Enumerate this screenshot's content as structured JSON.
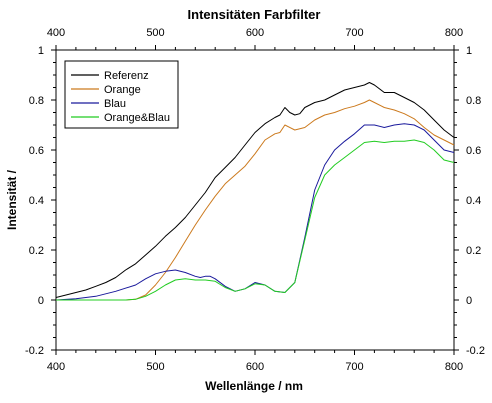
{
  "chart_data": {
    "type": "line",
    "title": "Intensitäten Farbfilter",
    "xlabel": "Wellenlänge / nm",
    "ylabel": "Intensität /",
    "xlim": [
      400,
      800
    ],
    "ylim": [
      -0.2,
      1
    ],
    "x_ticks": [
      "400",
      "500",
      "600",
      "700",
      "800"
    ],
    "y_ticks": [
      "-0.2",
      "0",
      "0.2",
      "0.4",
      "0.6",
      "0.8",
      "1"
    ],
    "mirror_axes": true,
    "grid": false,
    "legend_position": "top-left",
    "series": [
      {
        "name": "Referenz",
        "color": "#000000",
        "x": [
          400,
          410,
          420,
          430,
          440,
          450,
          460,
          470,
          480,
          490,
          500,
          510,
          520,
          530,
          540,
          550,
          560,
          570,
          580,
          590,
          600,
          610,
          620,
          625,
          630,
          635,
          640,
          645,
          650,
          660,
          670,
          680,
          690,
          700,
          710,
          715,
          720,
          730,
          740,
          750,
          760,
          770,
          780,
          790,
          800
        ],
        "y": [
          0.01,
          0.02,
          0.03,
          0.04,
          0.055,
          0.07,
          0.09,
          0.12,
          0.145,
          0.18,
          0.215,
          0.255,
          0.29,
          0.33,
          0.38,
          0.43,
          0.49,
          0.53,
          0.57,
          0.62,
          0.67,
          0.705,
          0.73,
          0.74,
          0.77,
          0.75,
          0.74,
          0.745,
          0.77,
          0.79,
          0.8,
          0.82,
          0.84,
          0.85,
          0.86,
          0.87,
          0.86,
          0.83,
          0.83,
          0.81,
          0.79,
          0.76,
          0.72,
          0.68,
          0.65
        ]
      },
      {
        "name": "Orange",
        "color": "#cc7a1e",
        "x": [
          400,
          470,
          480,
          490,
          500,
          510,
          520,
          530,
          540,
          550,
          560,
          570,
          580,
          590,
          600,
          610,
          620,
          625,
          630,
          640,
          650,
          660,
          670,
          680,
          690,
          700,
          710,
          715,
          720,
          730,
          740,
          750,
          760,
          770,
          780,
          790,
          800
        ],
        "y": [
          0,
          0,
          0.003,
          0.02,
          0.06,
          0.11,
          0.17,
          0.235,
          0.3,
          0.36,
          0.415,
          0.465,
          0.5,
          0.535,
          0.585,
          0.64,
          0.665,
          0.67,
          0.7,
          0.68,
          0.69,
          0.72,
          0.74,
          0.75,
          0.765,
          0.775,
          0.79,
          0.8,
          0.79,
          0.77,
          0.76,
          0.745,
          0.725,
          0.69,
          0.66,
          0.64,
          0.62
        ]
      },
      {
        "name": "Blau",
        "color": "#1a1a9c",
        "x": [
          400,
          420,
          440,
          460,
          480,
          490,
          500,
          510,
          520,
          530,
          540,
          545,
          550,
          555,
          560,
          570,
          580,
          590,
          600,
          610,
          620,
          630,
          640,
          650,
          660,
          670,
          680,
          690,
          700,
          710,
          720,
          730,
          740,
          750,
          760,
          770,
          780,
          790,
          800
        ],
        "y": [
          0,
          0.005,
          0.015,
          0.035,
          0.06,
          0.085,
          0.105,
          0.115,
          0.12,
          0.11,
          0.095,
          0.09,
          0.095,
          0.095,
          0.085,
          0.055,
          0.035,
          0.045,
          0.07,
          0.06,
          0.035,
          0.03,
          0.07,
          0.25,
          0.44,
          0.54,
          0.6,
          0.635,
          0.665,
          0.7,
          0.7,
          0.69,
          0.7,
          0.705,
          0.7,
          0.68,
          0.64,
          0.6,
          0.59
        ]
      },
      {
        "name": "Orange&Blau",
        "color": "#22cc22",
        "x": [
          400,
          470,
          480,
          490,
          500,
          510,
          520,
          530,
          540,
          550,
          560,
          570,
          580,
          590,
          600,
          610,
          620,
          630,
          640,
          650,
          660,
          670,
          680,
          690,
          700,
          710,
          720,
          730,
          740,
          750,
          760,
          770,
          780,
          790,
          800
        ],
        "y": [
          0,
          0,
          0.003,
          0.015,
          0.035,
          0.06,
          0.08,
          0.085,
          0.08,
          0.08,
          0.075,
          0.05,
          0.035,
          0.045,
          0.065,
          0.06,
          0.035,
          0.03,
          0.07,
          0.24,
          0.41,
          0.5,
          0.54,
          0.57,
          0.6,
          0.63,
          0.635,
          0.63,
          0.635,
          0.635,
          0.64,
          0.63,
          0.6,
          0.56,
          0.55
        ]
      }
    ]
  }
}
